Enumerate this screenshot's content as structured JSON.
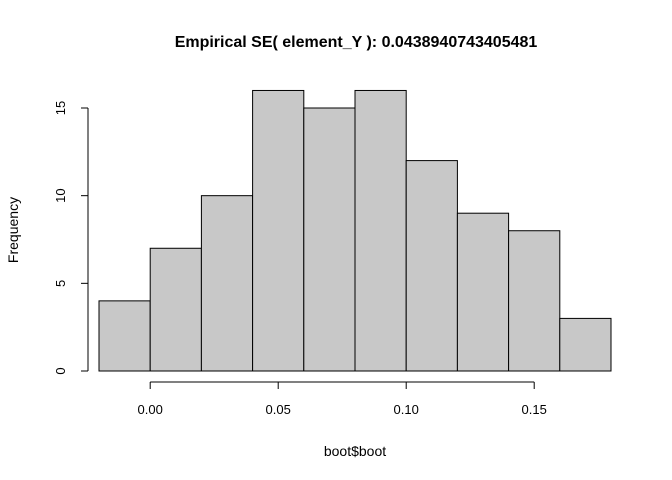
{
  "chart_data": {
    "type": "bar",
    "title": "Empirical SE( element_Y ):  0.0438940743405481",
    "xlabel": "boot$boot",
    "ylabel": "Frequency",
    "bins": [
      {
        "start": -0.02,
        "end": 0.0,
        "value": 4
      },
      {
        "start": 0.0,
        "end": 0.02,
        "value": 7
      },
      {
        "start": 0.02,
        "end": 0.04,
        "value": 10
      },
      {
        "start": 0.04,
        "end": 0.06,
        "value": 16
      },
      {
        "start": 0.06,
        "end": 0.08,
        "value": 15
      },
      {
        "start": 0.08,
        "end": 0.1,
        "value": 16
      },
      {
        "start": 0.1,
        "end": 0.12,
        "value": 12
      },
      {
        "start": 0.12,
        "end": 0.14,
        "value": 9
      },
      {
        "start": 0.14,
        "end": 0.16,
        "value": 8
      },
      {
        "start": 0.16,
        "end": 0.18,
        "value": 3
      }
    ],
    "xlim": [
      -0.02,
      0.18
    ],
    "ylim": [
      0,
      16
    ],
    "x_ticks": [
      0.0,
      0.05,
      0.1,
      0.15
    ],
    "x_tick_labels": [
      "0.00",
      "0.05",
      "0.10",
      "0.15"
    ],
    "y_ticks": [
      0,
      5,
      10,
      15
    ],
    "y_tick_labels": [
      "0",
      "5",
      "10",
      "15"
    ],
    "bar_color": "#c8c8c8",
    "grid": false
  }
}
